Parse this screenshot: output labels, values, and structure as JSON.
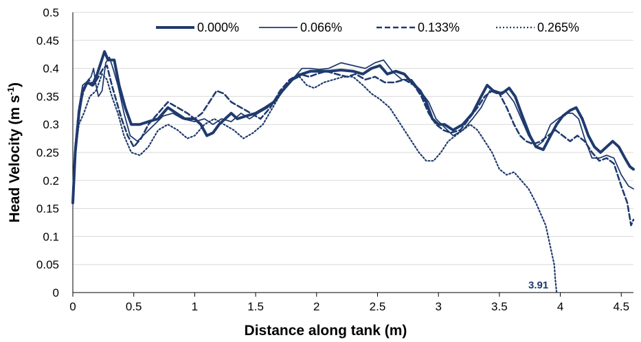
{
  "chart_data": {
    "type": "line",
    "xlabel": "Distance along tank (m)",
    "ylabel_main": "Head Velocity (m s",
    "ylabel_sup": "-1",
    "ylabel_close": ")",
    "xlim": [
      0,
      4.6
    ],
    "ylim": [
      0,
      0.5
    ],
    "x_ticks": [
      "0",
      "0.5",
      "1",
      "1.5",
      "2",
      "2.5",
      "3",
      "3.5",
      "4",
      "4.5"
    ],
    "y_ticks": [
      "0",
      "0.05",
      "0.1",
      "0.15",
      "0.2",
      "0.25",
      "0.3",
      "0.35",
      "0.4",
      "0.45",
      "0.5"
    ],
    "grid": "horizontal",
    "legend_position": "top",
    "colors": {
      "series": "#1f3a6e",
      "grid": "#d9d9d9",
      "axis": "#000000"
    },
    "series": [
      {
        "name": "0.000%",
        "style": "solid-thick",
        "points": [
          [
            0,
            0.16
          ],
          [
            0.02,
            0.25
          ],
          [
            0.05,
            0.32
          ],
          [
            0.08,
            0.36
          ],
          [
            0.12,
            0.375
          ],
          [
            0.16,
            0.37
          ],
          [
            0.2,
            0.39
          ],
          [
            0.23,
            0.41
          ],
          [
            0.26,
            0.43
          ],
          [
            0.29,
            0.415
          ],
          [
            0.34,
            0.415
          ],
          [
            0.38,
            0.37
          ],
          [
            0.43,
            0.33
          ],
          [
            0.48,
            0.3
          ],
          [
            0.55,
            0.3
          ],
          [
            0.62,
            0.305
          ],
          [
            0.7,
            0.31
          ],
          [
            0.78,
            0.33
          ],
          [
            0.85,
            0.32
          ],
          [
            0.92,
            0.31
          ],
          [
            1.0,
            0.31
          ],
          [
            1.05,
            0.3
          ],
          [
            1.1,
            0.28
          ],
          [
            1.15,
            0.285
          ],
          [
            1.2,
            0.3
          ],
          [
            1.25,
            0.31
          ],
          [
            1.3,
            0.32
          ],
          [
            1.35,
            0.31
          ],
          [
            1.42,
            0.315
          ],
          [
            1.5,
            0.32
          ],
          [
            1.58,
            0.33
          ],
          [
            1.65,
            0.34
          ],
          [
            1.72,
            0.36
          ],
          [
            1.8,
            0.38
          ],
          [
            1.88,
            0.39
          ],
          [
            1.95,
            0.395
          ],
          [
            2.0,
            0.395
          ],
          [
            2.1,
            0.395
          ],
          [
            2.2,
            0.397
          ],
          [
            2.3,
            0.395
          ],
          [
            2.38,
            0.39
          ],
          [
            2.45,
            0.4
          ],
          [
            2.52,
            0.405
          ],
          [
            2.58,
            0.39
          ],
          [
            2.65,
            0.395
          ],
          [
            2.72,
            0.39
          ],
          [
            2.78,
            0.375
          ],
          [
            2.85,
            0.36
          ],
          [
            2.9,
            0.34
          ],
          [
            2.95,
            0.31
          ],
          [
            3.0,
            0.3
          ],
          [
            3.05,
            0.3
          ],
          [
            3.12,
            0.29
          ],
          [
            3.2,
            0.3
          ],
          [
            3.28,
            0.32
          ],
          [
            3.35,
            0.35
          ],
          [
            3.4,
            0.37
          ],
          [
            3.45,
            0.36
          ],
          [
            3.52,
            0.355
          ],
          [
            3.58,
            0.365
          ],
          [
            3.63,
            0.35
          ],
          [
            3.68,
            0.32
          ],
          [
            3.75,
            0.28
          ],
          [
            3.8,
            0.26
          ],
          [
            3.86,
            0.255
          ],
          [
            3.92,
            0.28
          ],
          [
            3.97,
            0.3
          ],
          [
            4.02,
            0.315
          ],
          [
            4.08,
            0.325
          ],
          [
            4.13,
            0.33
          ],
          [
            4.18,
            0.31
          ],
          [
            4.23,
            0.28
          ],
          [
            4.28,
            0.26
          ],
          [
            4.33,
            0.25
          ],
          [
            4.38,
            0.26
          ],
          [
            4.43,
            0.27
          ],
          [
            4.48,
            0.26
          ],
          [
            4.53,
            0.24
          ],
          [
            4.57,
            0.225
          ],
          [
            4.6,
            0.22
          ]
        ]
      },
      {
        "name": "0.066%",
        "style": "solid-thin",
        "points": [
          [
            0,
            0.17
          ],
          [
            0.02,
            0.26
          ],
          [
            0.05,
            0.33
          ],
          [
            0.08,
            0.37
          ],
          [
            0.11,
            0.375
          ],
          [
            0.15,
            0.385
          ],
          [
            0.17,
            0.4
          ],
          [
            0.19,
            0.37
          ],
          [
            0.21,
            0.35
          ],
          [
            0.24,
            0.36
          ],
          [
            0.27,
            0.41
          ],
          [
            0.3,
            0.42
          ],
          [
            0.33,
            0.4
          ],
          [
            0.37,
            0.37
          ],
          [
            0.42,
            0.32
          ],
          [
            0.47,
            0.28
          ],
          [
            0.53,
            0.27
          ],
          [
            0.6,
            0.285
          ],
          [
            0.67,
            0.3
          ],
          [
            0.74,
            0.315
          ],
          [
            0.82,
            0.32
          ],
          [
            0.9,
            0.31
          ],
          [
            1.0,
            0.305
          ],
          [
            1.08,
            0.31
          ],
          [
            1.15,
            0.3
          ],
          [
            1.22,
            0.31
          ],
          [
            1.3,
            0.305
          ],
          [
            1.38,
            0.32
          ],
          [
            1.45,
            0.31
          ],
          [
            1.52,
            0.32
          ],
          [
            1.6,
            0.33
          ],
          [
            1.68,
            0.35
          ],
          [
            1.75,
            0.37
          ],
          [
            1.82,
            0.385
          ],
          [
            1.88,
            0.4
          ],
          [
            1.95,
            0.4
          ],
          [
            2.02,
            0.398
          ],
          [
            2.1,
            0.4
          ],
          [
            2.2,
            0.41
          ],
          [
            2.3,
            0.405
          ],
          [
            2.4,
            0.4
          ],
          [
            2.48,
            0.41
          ],
          [
            2.55,
            0.415
          ],
          [
            2.62,
            0.395
          ],
          [
            2.7,
            0.38
          ],
          [
            2.78,
            0.38
          ],
          [
            2.85,
            0.36
          ],
          [
            2.92,
            0.34
          ],
          [
            2.98,
            0.31
          ],
          [
            3.05,
            0.295
          ],
          [
            3.12,
            0.28
          ],
          [
            3.2,
            0.29
          ],
          [
            3.28,
            0.31
          ],
          [
            3.35,
            0.33
          ],
          [
            3.42,
            0.36
          ],
          [
            3.48,
            0.355
          ],
          [
            3.55,
            0.36
          ],
          [
            3.62,
            0.34
          ],
          [
            3.68,
            0.31
          ],
          [
            3.74,
            0.28
          ],
          [
            3.8,
            0.26
          ],
          [
            3.86,
            0.27
          ],
          [
            3.92,
            0.3
          ],
          [
            3.98,
            0.31
          ],
          [
            4.05,
            0.32
          ],
          [
            4.1,
            0.32
          ],
          [
            4.15,
            0.31
          ],
          [
            4.2,
            0.275
          ],
          [
            4.26,
            0.24
          ],
          [
            4.32,
            0.24
          ],
          [
            4.38,
            0.245
          ],
          [
            4.44,
            0.24
          ],
          [
            4.5,
            0.21
          ],
          [
            4.56,
            0.19
          ],
          [
            4.6,
            0.185
          ]
        ]
      },
      {
        "name": "0.133%",
        "style": "dashed",
        "points": [
          [
            0,
            0.17
          ],
          [
            0.02,
            0.26
          ],
          [
            0.05,
            0.33
          ],
          [
            0.09,
            0.36
          ],
          [
            0.13,
            0.38
          ],
          [
            0.17,
            0.37
          ],
          [
            0.21,
            0.385
          ],
          [
            0.25,
            0.4
          ],
          [
            0.28,
            0.405
          ],
          [
            0.32,
            0.37
          ],
          [
            0.36,
            0.34
          ],
          [
            0.4,
            0.31
          ],
          [
            0.45,
            0.28
          ],
          [
            0.5,
            0.26
          ],
          [
            0.56,
            0.275
          ],
          [
            0.62,
            0.3
          ],
          [
            0.7,
            0.32
          ],
          [
            0.78,
            0.34
          ],
          [
            0.86,
            0.33
          ],
          [
            0.94,
            0.32
          ],
          [
            1.0,
            0.31
          ],
          [
            1.06,
            0.32
          ],
          [
            1.12,
            0.34
          ],
          [
            1.18,
            0.36
          ],
          [
            1.24,
            0.355
          ],
          [
            1.3,
            0.34
          ],
          [
            1.38,
            0.33
          ],
          [
            1.46,
            0.32
          ],
          [
            1.54,
            0.31
          ],
          [
            1.62,
            0.33
          ],
          [
            1.7,
            0.36
          ],
          [
            1.78,
            0.38
          ],
          [
            1.86,
            0.39
          ],
          [
            1.94,
            0.385
          ],
          [
            2.0,
            0.39
          ],
          [
            2.08,
            0.395
          ],
          [
            2.16,
            0.39
          ],
          [
            2.25,
            0.385
          ],
          [
            2.32,
            0.39
          ],
          [
            2.4,
            0.38
          ],
          [
            2.48,
            0.385
          ],
          [
            2.56,
            0.375
          ],
          [
            2.64,
            0.375
          ],
          [
            2.72,
            0.38
          ],
          [
            2.8,
            0.37
          ],
          [
            2.86,
            0.35
          ],
          [
            2.92,
            0.32
          ],
          [
            2.98,
            0.3
          ],
          [
            3.04,
            0.29
          ],
          [
            3.1,
            0.285
          ],
          [
            3.18,
            0.29
          ],
          [
            3.25,
            0.31
          ],
          [
            3.32,
            0.33
          ],
          [
            3.38,
            0.35
          ],
          [
            3.44,
            0.36
          ],
          [
            3.5,
            0.355
          ],
          [
            3.56,
            0.33
          ],
          [
            3.62,
            0.3
          ],
          [
            3.67,
            0.28
          ],
          [
            3.72,
            0.27
          ],
          [
            3.78,
            0.265
          ],
          [
            3.84,
            0.27
          ],
          [
            3.9,
            0.28
          ],
          [
            3.96,
            0.29
          ],
          [
            4.02,
            0.28
          ],
          [
            4.08,
            0.27
          ],
          [
            4.14,
            0.28
          ],
          [
            4.2,
            0.27
          ],
          [
            4.26,
            0.25
          ],
          [
            4.32,
            0.235
          ],
          [
            4.38,
            0.24
          ],
          [
            4.44,
            0.23
          ],
          [
            4.5,
            0.19
          ],
          [
            4.55,
            0.16
          ],
          [
            4.58,
            0.12
          ],
          [
            4.6,
            0.13
          ]
        ]
      },
      {
        "name": "0.265%",
        "style": "dotted",
        "points": [
          [
            0,
            0.16
          ],
          [
            0.02,
            0.25
          ],
          [
            0.05,
            0.3
          ],
          [
            0.09,
            0.32
          ],
          [
            0.14,
            0.35
          ],
          [
            0.19,
            0.36
          ],
          [
            0.24,
            0.39
          ],
          [
            0.28,
            0.38
          ],
          [
            0.32,
            0.35
          ],
          [
            0.37,
            0.32
          ],
          [
            0.42,
            0.28
          ],
          [
            0.48,
            0.25
          ],
          [
            0.55,
            0.245
          ],
          [
            0.62,
            0.26
          ],
          [
            0.7,
            0.29
          ],
          [
            0.78,
            0.3
          ],
          [
            0.86,
            0.29
          ],
          [
            0.94,
            0.275
          ],
          [
            1.0,
            0.28
          ],
          [
            1.08,
            0.3
          ],
          [
            1.16,
            0.31
          ],
          [
            1.24,
            0.3
          ],
          [
            1.32,
            0.29
          ],
          [
            1.4,
            0.275
          ],
          [
            1.48,
            0.285
          ],
          [
            1.56,
            0.3
          ],
          [
            1.64,
            0.33
          ],
          [
            1.72,
            0.36
          ],
          [
            1.8,
            0.38
          ],
          [
            1.86,
            0.385
          ],
          [
            1.92,
            0.37
          ],
          [
            1.98,
            0.365
          ],
          [
            2.06,
            0.375
          ],
          [
            2.14,
            0.38
          ],
          [
            2.22,
            0.385
          ],
          [
            2.3,
            0.385
          ],
          [
            2.38,
            0.37
          ],
          [
            2.45,
            0.355
          ],
          [
            2.52,
            0.345
          ],
          [
            2.6,
            0.33
          ],
          [
            2.66,
            0.31
          ],
          [
            2.72,
            0.29
          ],
          [
            2.78,
            0.27
          ],
          [
            2.84,
            0.25
          ],
          [
            2.9,
            0.235
          ],
          [
            2.96,
            0.235
          ],
          [
            3.02,
            0.25
          ],
          [
            3.08,
            0.27
          ],
          [
            3.14,
            0.28
          ],
          [
            3.2,
            0.29
          ],
          [
            3.26,
            0.3
          ],
          [
            3.32,
            0.29
          ],
          [
            3.38,
            0.27
          ],
          [
            3.44,
            0.25
          ],
          [
            3.5,
            0.22
          ],
          [
            3.56,
            0.21
          ],
          [
            3.62,
            0.215
          ],
          [
            3.68,
            0.2
          ],
          [
            3.74,
            0.185
          ],
          [
            3.8,
            0.16
          ],
          [
            3.84,
            0.14
          ],
          [
            3.88,
            0.12
          ],
          [
            3.92,
            0.08
          ],
          [
            3.95,
            0.05
          ],
          [
            3.96,
            0.02
          ],
          [
            3.97,
            0.0
          ]
        ]
      }
    ],
    "annotations": [
      {
        "text": "3.91",
        "x": 3.91,
        "y": 0.0
      }
    ]
  }
}
